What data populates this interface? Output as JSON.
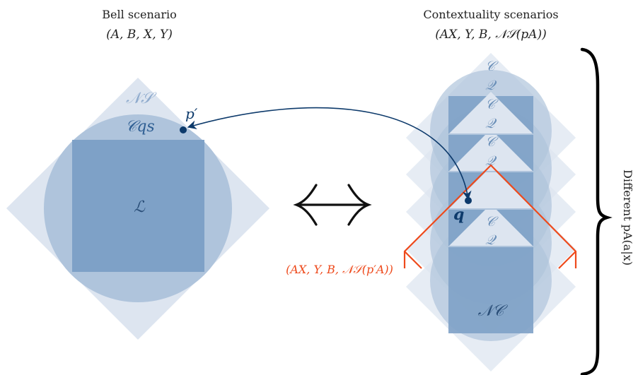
{
  "bell": {
    "title": "Bell scenario",
    "scenario": "(A, B, X, Y)",
    "labels": {
      "ns": "𝒩𝒮",
      "cqs": "𝒞qs",
      "local": "ℒ",
      "point": "p′"
    }
  },
  "contextuality": {
    "title": "Contextuality scenarios",
    "scenario": "(AX, Y, B, 𝒩𝒮(pA))",
    "stack_labels": [
      "𝒞",
      "𝒬",
      "𝒞",
      "𝒬",
      "𝒞",
      "𝒬",
      "𝒞",
      "𝒬"
    ],
    "nc_label": "𝒩𝒞",
    "point": "q",
    "highlight_scenario": "(AX, Y, B, 𝒩𝒮(p′A))"
  },
  "equivalence_symbol": "⟺",
  "brace_label": "Different  pA(a|x)",
  "colors": {
    "ns_fill": "#dde5f0",
    "quantum_fill": "#afc4dc",
    "local_fill": "#7ea1c7",
    "dark_blue": "#0d3a6b",
    "label_blue": "#6a8fb8",
    "orange": "#ee4a1c"
  }
}
